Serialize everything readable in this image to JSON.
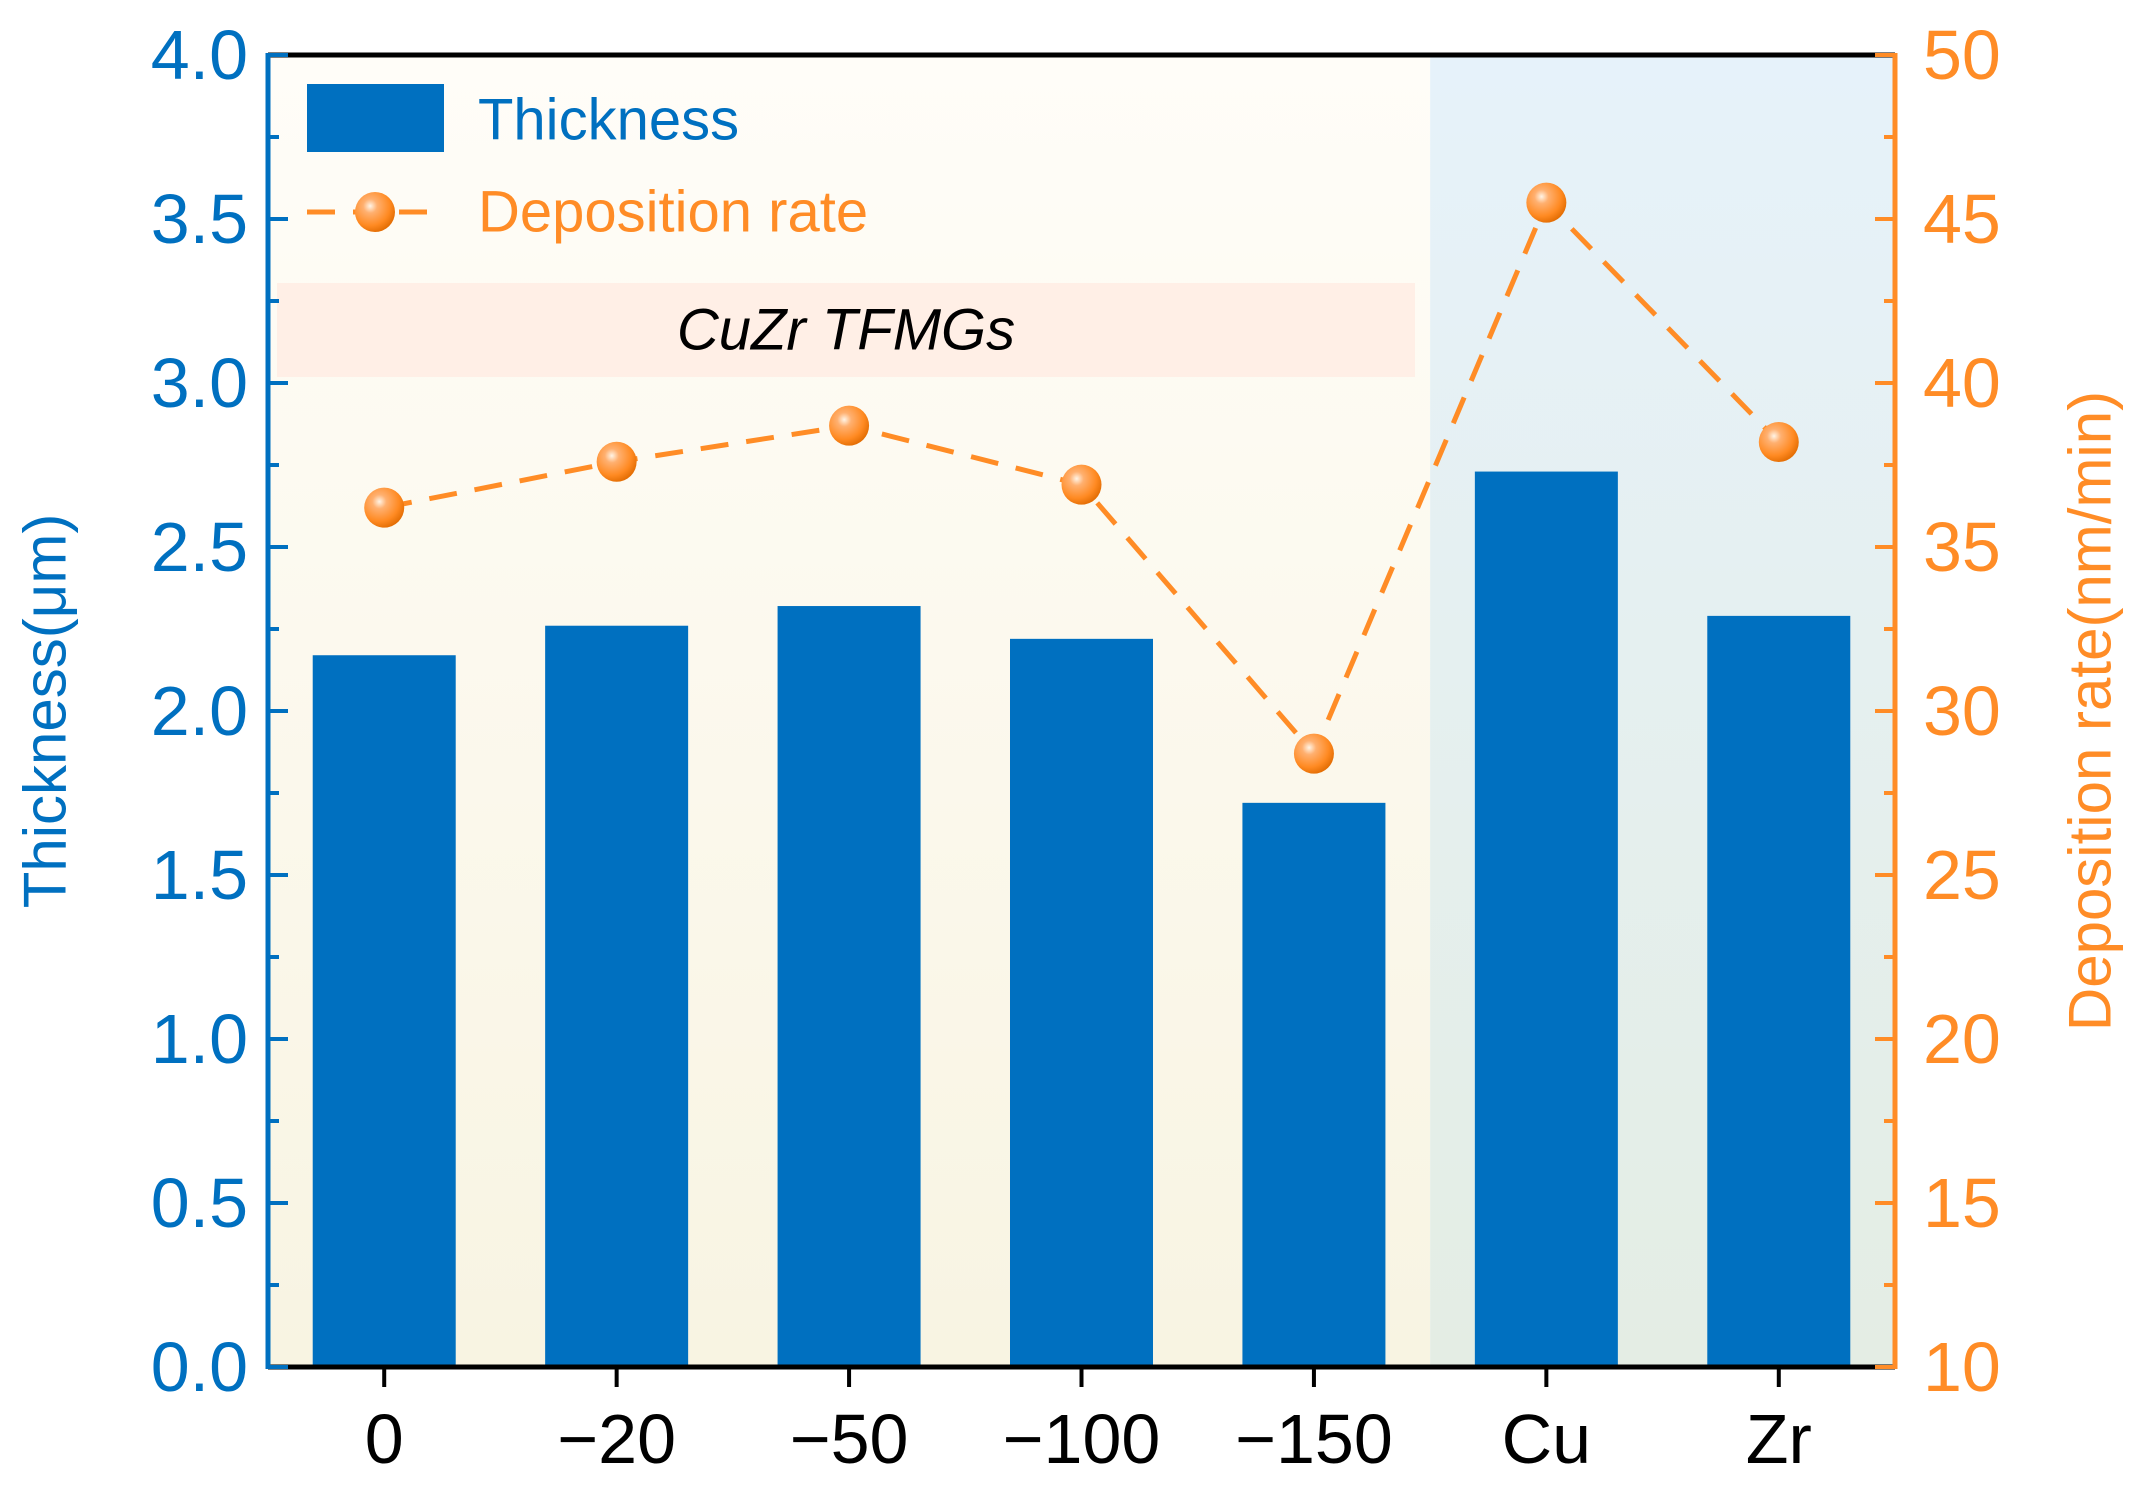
{
  "chart_data": {
    "type": "bar",
    "categories": [
      "0",
      "−20",
      "−50",
      "−100",
      "−150",
      "Cu",
      "Zr"
    ],
    "series": [
      {
        "name": "Thickness",
        "kind": "bar",
        "axis": "left",
        "values": [
          2.17,
          2.26,
          2.32,
          2.22,
          1.72,
          2.73,
          2.29
        ],
        "color": "#0070C0"
      },
      {
        "name": "Deposition rate",
        "kind": "line-marker",
        "axis": "right",
        "line_style": "dashed",
        "values": [
          36.2,
          37.6,
          38.7,
          36.9,
          28.7,
          45.5,
          38.2
        ],
        "color": "#FF8C26"
      }
    ],
    "ylabel": "Thickness(μm)",
    "ylim": [
      0,
      4.0
    ],
    "yticks": [
      "0.0",
      "0.5",
      "1.0",
      "1.5",
      "2.0",
      "2.5",
      "3.0",
      "3.5",
      "4.0"
    ],
    "y2label": "Deposition rate(nm/min)",
    "y2lim": [
      10,
      50
    ],
    "y2ticks": [
      "10",
      "15",
      "20",
      "25",
      "30",
      "35",
      "40",
      "45",
      "50"
    ],
    "annotation": "CuZr TFMGs",
    "legend_position": "top-left",
    "grid": false,
    "colors": {
      "left_axis": "#0070C0",
      "right_axis": "#FF8C26",
      "annotation_band": "#FFEFE6",
      "cuzr_bg_top": "#FFFDF8",
      "cuzr_bg_bottom": "#F8F4E2",
      "elem_bg_top": "#E6F2FA",
      "elem_bg_bottom": "#E4EDE4"
    }
  }
}
